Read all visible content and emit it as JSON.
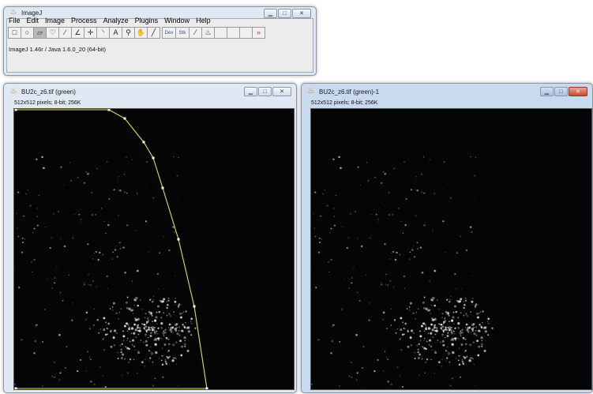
{
  "imagej": {
    "title": "ImageJ",
    "menu": [
      "File",
      "Edit",
      "Image",
      "Process",
      "Analyze",
      "Plugins",
      "Window",
      "Help"
    ],
    "tools": [
      {
        "icon": "rectangle-tool-icon",
        "glyph": "□"
      },
      {
        "icon": "oval-tool-icon",
        "glyph": "○"
      },
      {
        "icon": "polygon-tool-icon",
        "glyph": "▱",
        "selected": true
      },
      {
        "icon": "freehand-tool-icon",
        "glyph": "♡"
      },
      {
        "icon": "line-tool-icon",
        "glyph": "⁄"
      },
      {
        "icon": "angle-tool-icon",
        "glyph": "∠"
      },
      {
        "icon": "point-tool-icon",
        "glyph": "✛"
      },
      {
        "icon": "wand-tool-icon",
        "glyph": "⸌"
      },
      {
        "icon": "text-tool-icon",
        "glyph": "A"
      },
      {
        "icon": "magnifier-tool-icon",
        "glyph": "⚲"
      },
      {
        "icon": "hand-tool-icon",
        "glyph": "✋"
      },
      {
        "icon": "dropper-tool-icon",
        "glyph": "╱"
      },
      {
        "icon": "dev-tool-icon",
        "glyph": "Dev",
        "wide": true,
        "gap": true
      },
      {
        "icon": "stk-tool-icon",
        "glyph": "Stk",
        "wide": true
      },
      {
        "icon": "brush-tool-icon",
        "glyph": "⁄"
      },
      {
        "icon": "flood-fill-tool-icon",
        "glyph": "♨"
      },
      {
        "icon": "empty-tool-slot-icon",
        "glyph": ""
      },
      {
        "icon": "empty-tool-slot-icon",
        "glyph": ""
      },
      {
        "icon": "empty-tool-slot-icon",
        "glyph": ""
      },
      {
        "icon": "more-tools-icon",
        "glyph": "»"
      }
    ],
    "status": "ImageJ 1.46r / Java 1.6.0_20 (64-bit)"
  },
  "image_left": {
    "title": "BU2c_z6.tif (green)",
    "info": "512x512 pixels; 8-bit; 256K"
  },
  "image_right": {
    "title": "BU2c_z6.tif (green)-1",
    "info": "512x512 pixels; 8-bit; 256K"
  },
  "colors": {
    "roi": "#e3e04a",
    "background": "#050505",
    "titlebar": "#dfe8f3",
    "close_active": "#c74a2f"
  }
}
